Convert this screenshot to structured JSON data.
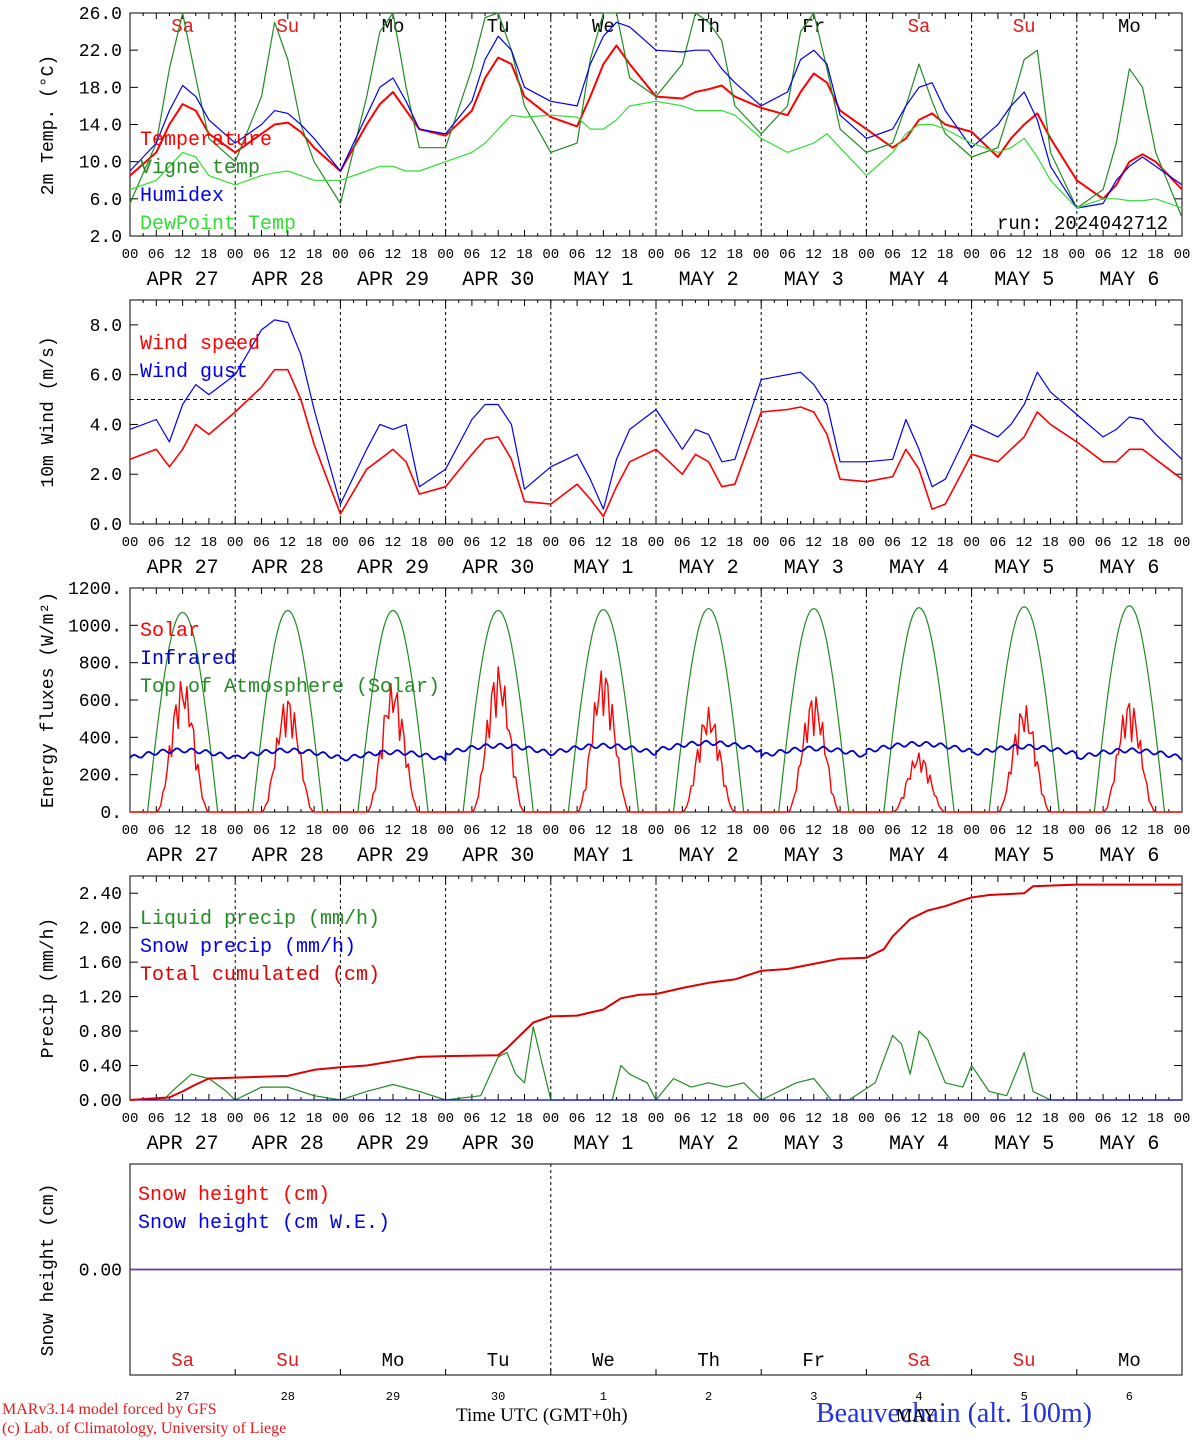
{
  "colors": {
    "temperature": "#ff0000",
    "vigne": "#228b22",
    "humidex": "#0000ee",
    "dewpoint": "#33dd33",
    "wind_speed": "#ff0000",
    "wind_gust": "#0000ee",
    "solar": "#ff0000",
    "infrared": "#0000cc",
    "toa": "#228b22",
    "liquid": "#228b22",
    "snow_precip": "#0000ee",
    "cumulated": "#dd0000",
    "snow_height": "#ff0000",
    "snow_we": "#0000ee",
    "weekend": "#e31a1c",
    "weekday": "#000000"
  },
  "days": [
    "Sa",
    "Su",
    "Mo",
    "Tu",
    "We",
    "Th",
    "Fr",
    "Sa",
    "Su",
    "Mo"
  ],
  "weekend_flags": [
    true,
    true,
    false,
    false,
    false,
    false,
    false,
    true,
    true,
    false
  ],
  "date_labels": [
    "APR 27",
    "APR 28",
    "APR 29",
    "APR 30",
    "MAY  1",
    "MAY  2",
    "MAY  3",
    "MAY  4",
    "MAY  5",
    "MAY  6"
  ],
  "hour_ticks": [
    "00",
    "06",
    "12",
    "18"
  ],
  "hour_end_label": "00",
  "bottom_day_numbers": [
    "27",
    "28",
    "29",
    "30",
    "1",
    "2",
    "3",
    "4",
    "5",
    "6"
  ],
  "bottom_month_label": "MAY",
  "run_label": "run: 2024042712",
  "footer": {
    "credit_line1": "MARv3.14 model forced by GFS",
    "credit_line2": "(c) Lab. of Climatology, University of Liege",
    "xlabel": "Time UTC (GMT+0h)",
    "station": "Beauvechain (alt. 100m)"
  },
  "chart_data": [
    {
      "type": "line",
      "ylabel": "2m Temp. (°C)",
      "ylim": [
        2.0,
        26.0
      ],
      "yticks": [
        "2.0",
        "6.0",
        "10.0",
        "14.0",
        "18.0",
        "22.0",
        "26.0"
      ],
      "x_unit": "hours since APR 27 00 UTC",
      "x_range": [
        0,
        240
      ],
      "x": [
        0,
        6,
        9,
        12,
        15,
        18,
        24,
        30,
        33,
        36,
        39,
        42,
        48,
        54,
        57,
        60,
        63,
        66,
        72,
        78,
        81,
        84,
        87,
        90,
        96,
        102,
        105,
        108,
        111,
        114,
        120,
        126,
        129,
        132,
        135,
        138,
        144,
        150,
        153,
        156,
        159,
        162,
        168,
        174,
        177,
        180,
        183,
        186,
        192,
        198,
        201,
        204,
        207,
        210,
        216,
        222,
        225,
        228,
        231,
        234,
        240
      ],
      "series": [
        {
          "name": "Temperature",
          "color_key": "temperature",
          "values": [
            8.5,
            11.0,
            14.0,
            16.2,
            15.5,
            13.0,
            11.0,
            13.0,
            14.0,
            14.2,
            13.2,
            11.5,
            9.0,
            14.0,
            16.2,
            17.5,
            15.5,
            13.5,
            12.8,
            15.5,
            19.0,
            21.2,
            20.5,
            17.0,
            14.8,
            13.8,
            17.0,
            20.5,
            22.5,
            20.5,
            17.0,
            16.8,
            17.5,
            17.8,
            18.2,
            17.0,
            15.8,
            15.0,
            17.5,
            19.5,
            18.5,
            15.5,
            13.5,
            11.5,
            12.5,
            14.5,
            15.2,
            14.0,
            13.2,
            10.5,
            12.5,
            14.0,
            15.2,
            12.5,
            8.0,
            6.0,
            7.5,
            10.0,
            10.8,
            10.0,
            7.0
          ]
        },
        {
          "name": "Vigne temp",
          "color_key": "vigne",
          "values": [
            5.5,
            12.0,
            20.0,
            26.0,
            19.0,
            12.5,
            10.0,
            17.0,
            25.0,
            21.0,
            14.0,
            10.0,
            5.5,
            17.0,
            24.0,
            26.0,
            18.0,
            11.5,
            11.5,
            20.0,
            25.5,
            26.0,
            22.0,
            16.0,
            11.0,
            12.0,
            21.0,
            26.0,
            26.0,
            19.0,
            17.0,
            20.5,
            26.0,
            25.0,
            23.0,
            16.0,
            13.0,
            16.0,
            24.0,
            26.0,
            20.0,
            13.5,
            11.0,
            12.0,
            16.0,
            20.5,
            16.5,
            13.0,
            10.5,
            11.5,
            16.0,
            21.0,
            22.0,
            11.0,
            5.0,
            7.0,
            12.0,
            20.0,
            18.0,
            11.0,
            4.0
          ]
        },
        {
          "name": "Humidex",
          "color_key": "humidex",
          "values": [
            9.0,
            12.0,
            15.5,
            18.2,
            17.0,
            14.5,
            12.0,
            14.0,
            15.5,
            15.2,
            14.0,
            12.5,
            9.0,
            15.0,
            18.0,
            19.0,
            16.5,
            13.5,
            13.0,
            16.5,
            21.0,
            23.5,
            22.0,
            18.0,
            16.5,
            16.0,
            20.5,
            23.5,
            25.0,
            24.5,
            22.0,
            21.8,
            22.0,
            22.0,
            20.0,
            18.5,
            16.0,
            17.5,
            21.0,
            22.0,
            20.5,
            15.0,
            12.5,
            13.5,
            16.0,
            18.0,
            18.5,
            15.5,
            11.5,
            14.0,
            16.0,
            17.5,
            14.5,
            9.5,
            5.0,
            5.5,
            8.0,
            9.5,
            10.5,
            9.5,
            7.5
          ]
        },
        {
          "name": "DewPoint Temp",
          "color_key": "dewpoint",
          "values": [
            7.0,
            8.0,
            9.5,
            11.0,
            10.5,
            8.5,
            7.5,
            8.5,
            8.8,
            9.0,
            8.5,
            8.0,
            8.0,
            9.0,
            9.5,
            9.5,
            9.0,
            9.0,
            10.0,
            11.0,
            12.0,
            13.5,
            15.0,
            14.8,
            15.0,
            14.8,
            13.5,
            13.5,
            14.5,
            16.0,
            16.5,
            16.0,
            15.5,
            15.5,
            15.5,
            15.0,
            12.5,
            11.0,
            11.5,
            12.0,
            13.0,
            11.5,
            8.5,
            11.0,
            13.0,
            14.0,
            14.0,
            13.5,
            12.0,
            11.0,
            11.5,
            12.5,
            10.5,
            8.0,
            5.0,
            6.0,
            6.0,
            5.8,
            5.8,
            6.0,
            5.0
          ]
        }
      ]
    },
    {
      "type": "line",
      "ylabel": "10m Wind (m/s)",
      "ylim": [
        0.0,
        9.0
      ],
      "yticks": [
        "0.0",
        "2.0",
        "4.0",
        "6.0",
        "8.0"
      ],
      "reference_line": 5.0,
      "x_unit": "hours since APR 27 00 UTC",
      "x_range": [
        0,
        240
      ],
      "x": [
        0,
        6,
        9,
        12,
        15,
        18,
        24,
        30,
        33,
        36,
        39,
        42,
        48,
        54,
        57,
        60,
        63,
        66,
        72,
        78,
        81,
        84,
        87,
        90,
        96,
        102,
        105,
        108,
        111,
        114,
        120,
        126,
        129,
        132,
        135,
        138,
        144,
        150,
        153,
        156,
        159,
        162,
        168,
        174,
        177,
        180,
        183,
        186,
        192,
        198,
        201,
        204,
        207,
        210,
        216,
        222,
        225,
        228,
        231,
        234,
        240
      ],
      "series": [
        {
          "name": "Wind speed",
          "color_key": "wind_speed",
          "values": [
            2.6,
            3.0,
            2.3,
            3.0,
            4.0,
            3.6,
            4.5,
            5.5,
            6.2,
            6.2,
            5.0,
            3.2,
            0.4,
            2.2,
            2.6,
            3.0,
            2.5,
            1.2,
            1.5,
            2.8,
            3.4,
            3.5,
            2.6,
            0.9,
            0.8,
            1.6,
            1.0,
            0.3,
            1.5,
            2.5,
            3.0,
            2.0,
            2.8,
            2.5,
            1.5,
            1.6,
            4.5,
            4.6,
            4.7,
            4.5,
            3.6,
            1.8,
            1.7,
            1.9,
            3.0,
            2.2,
            0.6,
            0.8,
            2.8,
            2.5,
            3.0,
            3.5,
            4.5,
            4.0,
            3.3,
            2.5,
            2.5,
            3.0,
            3.0,
            2.6,
            1.8
          ]
        },
        {
          "name": "Wind gust",
          "color_key": "wind_gust",
          "values": [
            3.8,
            4.2,
            3.3,
            4.8,
            5.6,
            5.2,
            6.0,
            7.8,
            8.2,
            8.1,
            6.8,
            4.6,
            0.8,
            3.0,
            4.0,
            3.8,
            4.0,
            1.5,
            2.2,
            4.2,
            4.8,
            4.8,
            4.0,
            1.4,
            2.3,
            2.8,
            1.8,
            0.6,
            2.6,
            3.8,
            4.6,
            3.0,
            3.8,
            3.6,
            2.5,
            2.6,
            5.8,
            6.0,
            6.1,
            5.6,
            4.8,
            2.5,
            2.5,
            2.6,
            4.2,
            3.0,
            1.5,
            1.8,
            4.0,
            3.5,
            4.0,
            4.8,
            6.1,
            5.3,
            4.4,
            3.5,
            3.8,
            4.3,
            4.2,
            3.6,
            2.6
          ]
        }
      ]
    },
    {
      "type": "line",
      "ylabel": "Energy fluxes (W/m²)",
      "ylim": [
        0,
        1200
      ],
      "yticks": [
        "0.",
        "200.",
        "400.",
        "600.",
        "800.",
        "1000.",
        "1200."
      ],
      "x_unit": "hours since APR 27 00 UTC",
      "x_range": [
        0,
        240
      ],
      "daily_max": {
        "solar": [
          720,
          630,
          700,
          790,
          780,
          560,
          640,
          320,
          580,
          610
        ],
        "infrared": [
          330,
          330,
          320,
          355,
          355,
          370,
          340,
          365,
          350,
          330
        ],
        "top_of_atmosphere": [
          1070,
          1080,
          1080,
          1080,
          1085,
          1090,
          1090,
          1095,
          1100,
          1105
        ]
      },
      "series": [
        {
          "name": "Solar",
          "color_key": "solar"
        },
        {
          "name": "Infrared",
          "color_key": "infrared"
        },
        {
          "name": "Top of Atmosphere (Solar)",
          "color_key": "toa"
        }
      ]
    },
    {
      "type": "line",
      "ylabel": "Precip (mm/h)",
      "ylim": [
        0.0,
        2.6
      ],
      "yticks": [
        "0.00",
        "0.40",
        "0.80",
        "1.20",
        "1.60",
        "2.00",
        "2.40"
      ],
      "x_unit": "hours since APR 27 00 UTC",
      "x_range": [
        0,
        240
      ],
      "series": [
        {
          "name": "Liquid precip (mm/h)",
          "color_key": "liquid",
          "x": [
            0,
            8,
            10,
            14,
            18,
            22,
            24,
            30,
            36,
            42,
            48,
            54,
            60,
            66,
            72,
            80,
            84,
            86,
            88,
            90,
            92,
            96,
            110,
            112,
            114,
            118,
            120,
            124,
            128,
            132,
            136,
            140,
            144,
            152,
            156,
            160,
            164,
            170,
            174,
            176,
            178,
            180,
            182,
            186,
            190,
            192,
            196,
            200,
            204,
            206,
            210,
            216,
            240
          ],
          "values": [
            0,
            0.02,
            0.12,
            0.3,
            0.25,
            0.1,
            0.0,
            0.15,
            0.15,
            0.05,
            0.0,
            0.1,
            0.18,
            0.1,
            0.0,
            0.05,
            0.5,
            0.55,
            0.3,
            0.2,
            0.85,
            0.0,
            0.0,
            0.4,
            0.3,
            0.2,
            0.0,
            0.25,
            0.15,
            0.2,
            0.15,
            0.2,
            0.0,
            0.2,
            0.25,
            0.0,
            0.0,
            0.2,
            0.75,
            0.65,
            0.3,
            0.8,
            0.7,
            0.2,
            0.15,
            0.4,
            0.1,
            0.05,
            0.55,
            0.1,
            0.0,
            0.0,
            0.0
          ]
        },
        {
          "name": "Snow precip (mm/h)",
          "color_key": "snow_precip",
          "x": [
            0,
            240
          ],
          "values": [
            0,
            0
          ]
        },
        {
          "name": "Total cumulated (cm)",
          "color_key": "cumulated",
          "x": [
            0,
            9,
            12,
            15,
            18,
            24,
            36,
            42,
            48,
            54,
            60,
            66,
            72,
            84,
            86,
            88,
            90,
            92,
            96,
            102,
            108,
            112,
            116,
            120,
            126,
            132,
            138,
            144,
            150,
            156,
            162,
            168,
            172,
            174,
            176,
            178,
            180,
            182,
            186,
            190,
            192,
            196,
            204,
            206,
            216,
            240
          ],
          "values": [
            0,
            0.03,
            0.1,
            0.18,
            0.25,
            0.26,
            0.28,
            0.35,
            0.38,
            0.4,
            0.45,
            0.5,
            0.51,
            0.52,
            0.6,
            0.7,
            0.8,
            0.9,
            0.97,
            0.98,
            1.05,
            1.18,
            1.22,
            1.23,
            1.3,
            1.36,
            1.4,
            1.5,
            1.52,
            1.58,
            1.64,
            1.65,
            1.75,
            1.9,
            2.0,
            2.1,
            2.15,
            2.2,
            2.25,
            2.32,
            2.35,
            2.38,
            2.4,
            2.48,
            2.5,
            2.5
          ]
        }
      ]
    },
    {
      "type": "line",
      "ylabel": "Snow height (cm)",
      "yticks": [
        "0.00"
      ],
      "x_unit": "hours since APR 27 00 UTC",
      "x_range": [
        0,
        240
      ],
      "series": [
        {
          "name": "Snow height (cm)",
          "color_key": "snow_height",
          "x": [
            0,
            240
          ],
          "values": [
            0,
            0
          ]
        },
        {
          "name": "Snow height (cm W.E.)",
          "color_key": "snow_we",
          "x": [
            0,
            240
          ],
          "values": [
            0,
            0
          ]
        }
      ]
    }
  ]
}
